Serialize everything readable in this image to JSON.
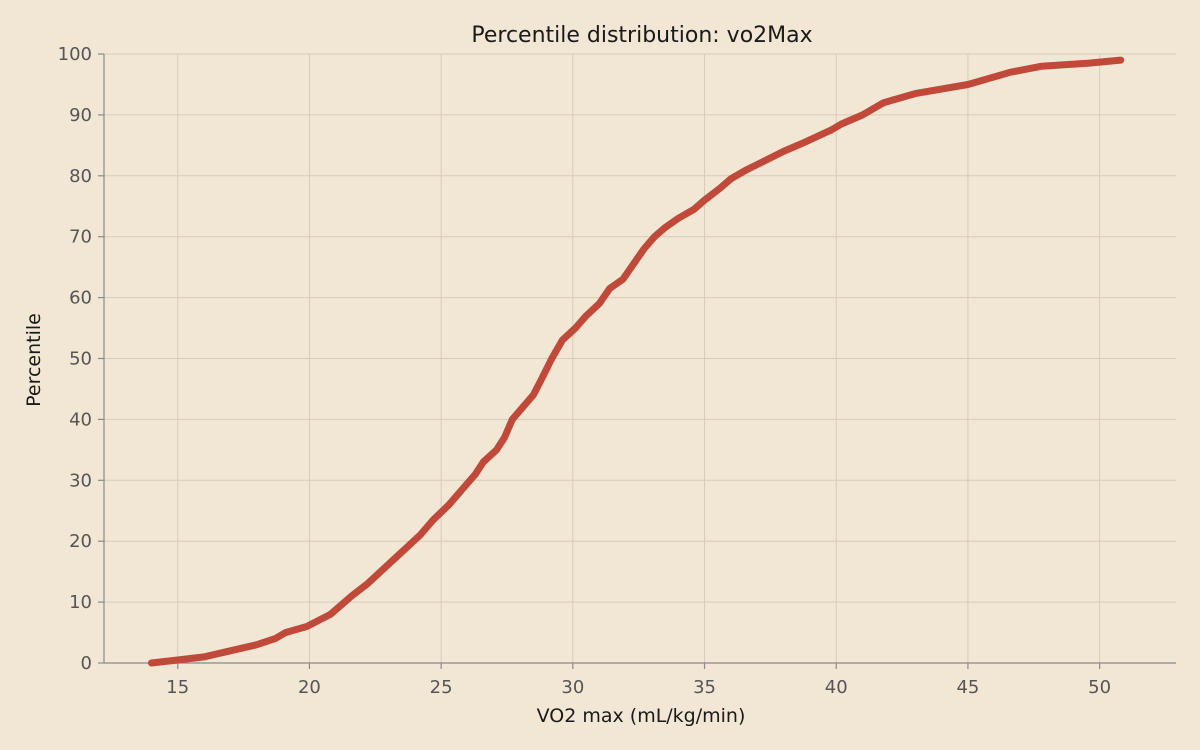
{
  "chart_data": {
    "type": "line",
    "title": "Percentile distribution: vo2Max",
    "xlabel": "VO2 max (mL/kg/min)",
    "ylabel": "Percentile",
    "xlim": [
      12.2,
      52.9
    ],
    "ylim": [
      0,
      100
    ],
    "x_ticks": [
      15,
      20,
      25,
      30,
      35,
      40,
      45,
      50
    ],
    "y_ticks": [
      0,
      10,
      20,
      30,
      40,
      50,
      60,
      70,
      80,
      90,
      100
    ],
    "grid": true,
    "colors": {
      "line": "#c0493a",
      "background": "#f2e7d5"
    },
    "series": [
      {
        "x": [
          14.0,
          15.0,
          16.0,
          17.0,
          18.0,
          18.7,
          19.1,
          19.9,
          20.8,
          21.6,
          22.2,
          22.7,
          23.2,
          23.7,
          24.2,
          24.7,
          25.3,
          25.9,
          26.3,
          26.6,
          27.1,
          27.4,
          27.7,
          28.1,
          28.5,
          28.8,
          29.2,
          29.6,
          30.1,
          30.5,
          31.0,
          31.4,
          31.9,
          32.3,
          32.7,
          33.1,
          33.5,
          34.0,
          34.6,
          35.0,
          35.6,
          36.0,
          36.6,
          37.3,
          38.0,
          38.8,
          39.8,
          40.2,
          41.0,
          41.8,
          43.0,
          45.0,
          46.6,
          47.8,
          49.6,
          50.8
        ],
        "y": [
          0,
          0.5,
          1,
          2,
          3,
          4,
          5,
          6,
          8,
          11,
          13,
          15,
          17,
          19,
          21,
          23.5,
          26,
          29,
          31,
          33,
          35,
          37,
          40,
          42,
          44,
          46.5,
          50,
          53,
          55,
          57,
          59,
          61.5,
          63,
          65.5,
          68,
          70,
          71.5,
          73,
          74.5,
          76,
          78,
          79.5,
          81,
          82.5,
          84,
          85.5,
          87.5,
          88.5,
          90,
          92,
          93.5,
          95,
          97,
          98,
          98.5,
          99
        ]
      }
    ]
  }
}
